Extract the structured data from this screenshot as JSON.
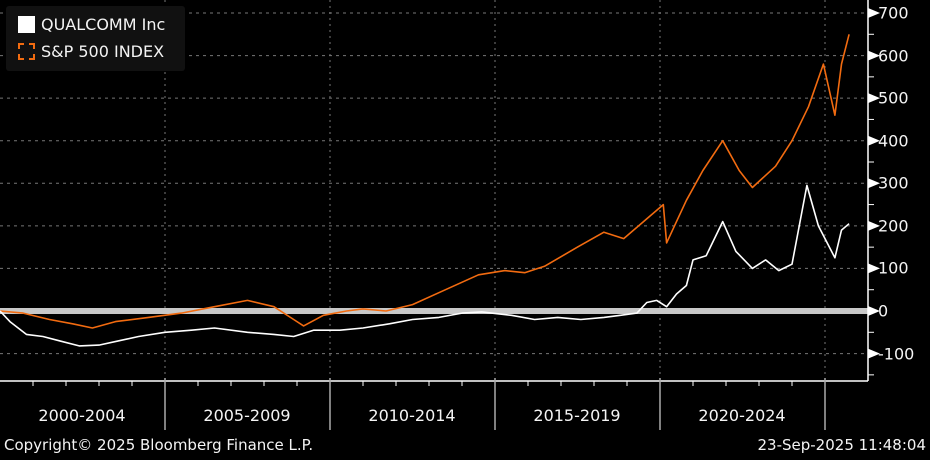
{
  "chart_data": {
    "type": "line",
    "title": "",
    "xlabel": "",
    "ylabel": "",
    "x_range": [
      2000.0,
      2025.73
    ],
    "ylim": [
      -160,
      720
    ],
    "y_ticks": [
      700,
      600,
      500,
      400,
      300,
      200,
      100,
      0,
      -100
    ],
    "x_categories": [
      "2000-2004",
      "2005-2009",
      "2010-2014",
      "2015-2019",
      "2020-2024"
    ],
    "grid": true,
    "legend_position": "top-left",
    "zero_line": true,
    "series": [
      {
        "name": "QUALCOMM Inc",
        "color": "#ffffff",
        "x": [
          2000.0,
          2000.3,
          2000.8,
          2001.3,
          2001.8,
          2002.4,
          2003.0,
          2003.6,
          2004.2,
          2005.0,
          2005.8,
          2006.5,
          2007.5,
          2008.3,
          2008.9,
          2009.5,
          2010.3,
          2011.0,
          2011.8,
          2012.5,
          2013.3,
          2014.0,
          2014.6,
          2015.5,
          2016.2,
          2016.9,
          2017.6,
          2018.3,
          2018.8,
          2019.3,
          2019.6,
          2019.9,
          2020.2,
          2020.5,
          2020.8,
          2021.0,
          2021.4,
          2021.9,
          2022.3,
          2022.8,
          2023.2,
          2023.6,
          2024.0,
          2024.45,
          2024.8,
          2025.3,
          2025.5,
          2025.73
        ],
        "values": [
          0,
          -25,
          -55,
          -60,
          -70,
          -82,
          -80,
          -70,
          -60,
          -50,
          -45,
          -40,
          -50,
          -55,
          -60,
          -45,
          -45,
          -40,
          -30,
          -20,
          -15,
          -5,
          -2,
          -10,
          -20,
          -15,
          -20,
          -15,
          -10,
          -5,
          20,
          25,
          10,
          40,
          60,
          120,
          130,
          210,
          140,
          100,
          120,
          95,
          110,
          295,
          200,
          125,
          190,
          205
        ]
      },
      {
        "name": "S&P 500 INDEX",
        "color": "#f26b10",
        "x": [
          2000.0,
          2000.7,
          2001.5,
          2002.2,
          2002.8,
          2003.5,
          2004.5,
          2005.5,
          2006.5,
          2007.5,
          2008.3,
          2008.9,
          2009.2,
          2009.8,
          2010.5,
          2011.0,
          2011.7,
          2012.5,
          2013.5,
          2014.5,
          2015.3,
          2015.9,
          2016.5,
          2017.5,
          2018.3,
          2018.9,
          2019.5,
          2020.1,
          2020.2,
          2020.5,
          2020.8,
          2021.3,
          2021.9,
          2022.4,
          2022.8,
          2023.5,
          2024.0,
          2024.5,
          2024.95,
          2025.3,
          2025.5,
          2025.73
        ],
        "values": [
          0,
          -5,
          -20,
          -30,
          -40,
          -25,
          -15,
          -5,
          10,
          25,
          10,
          -20,
          -35,
          -10,
          0,
          5,
          0,
          15,
          50,
          85,
          95,
          90,
          105,
          150,
          185,
          170,
          210,
          250,
          160,
          210,
          260,
          330,
          400,
          330,
          290,
          340,
          400,
          480,
          580,
          460,
          580,
          650
        ]
      }
    ]
  },
  "legend": {
    "items": [
      "QUALCOMM Inc",
      "S&P 500 INDEX"
    ]
  },
  "footer": {
    "copyright": "Copyright© 2025 Bloomberg Finance L.P.",
    "timestamp": "23-Sep-2025 11:48:04"
  }
}
